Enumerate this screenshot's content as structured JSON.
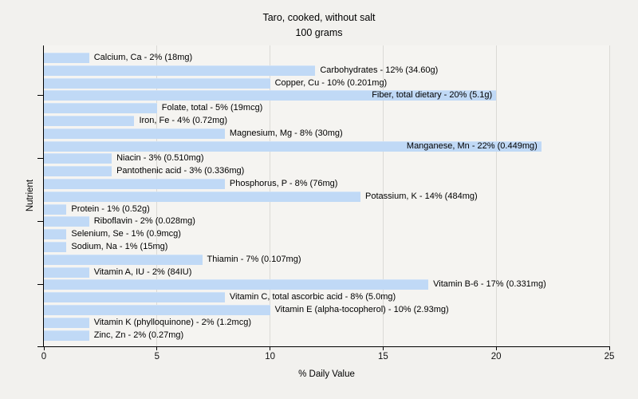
{
  "header": {
    "title": "Taro, cooked, without salt",
    "subtitle": "100 grams"
  },
  "chart_data": {
    "type": "bar",
    "orientation": "horizontal",
    "title": "Taro, cooked, without salt",
    "subtitle": "100 grams",
    "xlabel": "% Daily Value",
    "ylabel": "Nutrient",
    "xlim": [
      0,
      25
    ],
    "x_ticks": [
      0,
      5,
      10,
      15,
      20,
      25
    ],
    "grid": true,
    "legend": "none",
    "colors": {
      "bar": "#c0d9f6",
      "figure_bg": "#f2f1ee",
      "plot_bg": "#f5f4f1",
      "gridline": "#dbdad6",
      "axis": "#000000",
      "text": "#000000"
    },
    "categories": [
      "Calcium, Ca",
      "Carbohydrates",
      "Copper, Cu",
      "Fiber, total dietary",
      "Folate, total",
      "Iron, Fe",
      "Magnesium, Mg",
      "Manganese, Mn",
      "Niacin",
      "Pantothenic acid",
      "Phosphorus, P",
      "Potassium, K",
      "Protein",
      "Riboflavin",
      "Selenium, Se",
      "Sodium, Na",
      "Thiamin",
      "Vitamin A, IU",
      "Vitamin B-6",
      "Vitamin C, total ascorbic acid",
      "Vitamin E (alpha-tocopherol)",
      "Vitamin K (phylloquinone)",
      "Zinc, Zn"
    ],
    "values": [
      2,
      12,
      10,
      20,
      5,
      4,
      8,
      22,
      3,
      3,
      8,
      14,
      1,
      2,
      1,
      1,
      7,
      2,
      17,
      8,
      10,
      2,
      2
    ],
    "bars": [
      {
        "name": "Calcium, Ca",
        "pct": 2,
        "amount": "18mg",
        "label": "Calcium, Ca - 2% (18mg)"
      },
      {
        "name": "Carbohydrates",
        "pct": 12,
        "amount": "34.60g",
        "label": "Carbohydrates - 12% (34.60g)"
      },
      {
        "name": "Copper, Cu",
        "pct": 10,
        "amount": "0.201mg",
        "label": "Copper, Cu - 10% (0.201mg)"
      },
      {
        "name": "Fiber, total dietary",
        "pct": 20,
        "amount": "5.1g",
        "label": "Fiber, total dietary - 20% (5.1g)"
      },
      {
        "name": "Folate, total",
        "pct": 5,
        "amount": "19mcg",
        "label": "Folate, total - 5% (19mcg)"
      },
      {
        "name": "Iron, Fe",
        "pct": 4,
        "amount": "0.72mg",
        "label": "Iron, Fe - 4% (0.72mg)"
      },
      {
        "name": "Magnesium, Mg",
        "pct": 8,
        "amount": "30mg",
        "label": "Magnesium, Mg - 8% (30mg)"
      },
      {
        "name": "Manganese, Mn",
        "pct": 22,
        "amount": "0.449mg",
        "label": "Manganese, Mn - 22% (0.449mg)"
      },
      {
        "name": "Niacin",
        "pct": 3,
        "amount": "0.510mg",
        "label": "Niacin - 3% (0.510mg)"
      },
      {
        "name": "Pantothenic acid",
        "pct": 3,
        "amount": "0.336mg",
        "label": "Pantothenic acid - 3% (0.336mg)"
      },
      {
        "name": "Phosphorus, P",
        "pct": 8,
        "amount": "76mg",
        "label": "Phosphorus, P - 8% (76mg)"
      },
      {
        "name": "Potassium, K",
        "pct": 14,
        "amount": "484mg",
        "label": "Potassium, K - 14% (484mg)"
      },
      {
        "name": "Protein",
        "pct": 1,
        "amount": "0.52g",
        "label": "Protein - 1% (0.52g)"
      },
      {
        "name": "Riboflavin",
        "pct": 2,
        "amount": "0.028mg",
        "label": "Riboflavin - 2% (0.028mg)"
      },
      {
        "name": "Selenium, Se",
        "pct": 1,
        "amount": "0.9mcg",
        "label": "Selenium, Se - 1% (0.9mcg)"
      },
      {
        "name": "Sodium, Na",
        "pct": 1,
        "amount": "15mg",
        "label": "Sodium, Na - 1% (15mg)"
      },
      {
        "name": "Thiamin",
        "pct": 7,
        "amount": "0.107mg",
        "label": "Thiamin - 7% (0.107mg)"
      },
      {
        "name": "Vitamin A, IU",
        "pct": 2,
        "amount": "84IU",
        "label": "Vitamin A, IU - 2% (84IU)"
      },
      {
        "name": "Vitamin B-6",
        "pct": 17,
        "amount": "0.331mg",
        "label": "Vitamin B-6 - 17% (0.331mg)"
      },
      {
        "name": "Vitamin C, total ascorbic acid",
        "pct": 8,
        "amount": "5.0mg",
        "label": "Vitamin C, total ascorbic acid - 8% (5.0mg)"
      },
      {
        "name": "Vitamin E (alpha-tocopherol)",
        "pct": 10,
        "amount": "2.93mg",
        "label": "Vitamin E (alpha-tocopherol) - 10% (2.93mg)"
      },
      {
        "name": "Vitamin K (phylloquinone)",
        "pct": 2,
        "amount": "1.2mcg",
        "label": "Vitamin K (phylloquinone) - 2% (1.2mcg)"
      },
      {
        "name": "Zinc, Zn",
        "pct": 2,
        "amount": "0.27mg",
        "label": "Zinc, Zn - 2% (0.27mg)"
      }
    ]
  }
}
